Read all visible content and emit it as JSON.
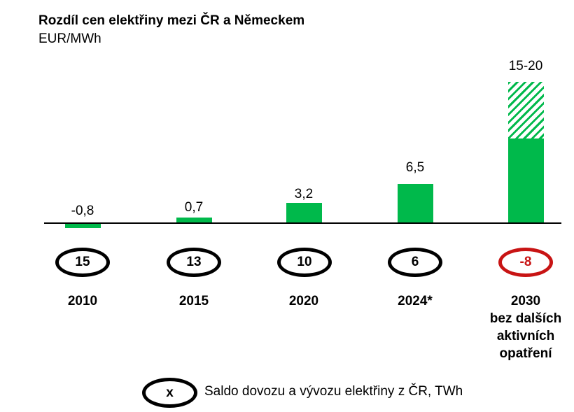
{
  "page": {
    "title": "Rozdíl cen elektřiny mezi ČR a Německem",
    "subtitle": "EUR/MWh"
  },
  "chart_data": {
    "type": "bar",
    "title": "Rozdíl cen elektřiny mezi ČR a Německem",
    "ylabel": "EUR/MWh",
    "xlabel": "",
    "grid": false,
    "legend_position": "bottom",
    "categories": [
      "2010",
      "2015",
      "2020",
      "2024*",
      "2030 bez dalších aktivních opatření"
    ],
    "values": [
      -0.8,
      0.7,
      3.2,
      6.5,
      15
    ],
    "value_labels": [
      "-0,8",
      "0,7",
      "3,2",
      "6,5",
      "15-20"
    ],
    "last_bar_range": {
      "min": 15,
      "max": 20,
      "style": "hatched-extension"
    },
    "secondary_series": {
      "name": "Saldo dovozu a vývozu elektřiny z ČR, TWh",
      "values": [
        15,
        13,
        10,
        6,
        -8
      ],
      "marker": "ellipse"
    },
    "ylim": [
      -1,
      20
    ]
  },
  "columns": [
    {
      "value_label": "-0,8",
      "balance": "15",
      "year_lines": [
        "2010"
      ]
    },
    {
      "value_label": "0,7",
      "balance": "13",
      "year_lines": [
        "2015"
      ]
    },
    {
      "value_label": "3,2",
      "balance": "10",
      "year_lines": [
        "2020"
      ]
    },
    {
      "value_label": "6,5",
      "balance": "6",
      "year_lines": [
        "2024*"
      ]
    },
    {
      "value_label": "15-20",
      "balance": "-8",
      "year_lines": [
        "2030",
        "bez dalších",
        "aktivních",
        "opatření"
      ]
    }
  ],
  "legend": {
    "symbol": "x",
    "text": "Saldo dovozu a vývozu elektřiny z ČR, TWh"
  },
  "colors": {
    "bar_green": "#00B94B",
    "highlight_red": "#C81414",
    "axis": "#000000",
    "text": "#000000",
    "background": "#FFFFFF"
  }
}
